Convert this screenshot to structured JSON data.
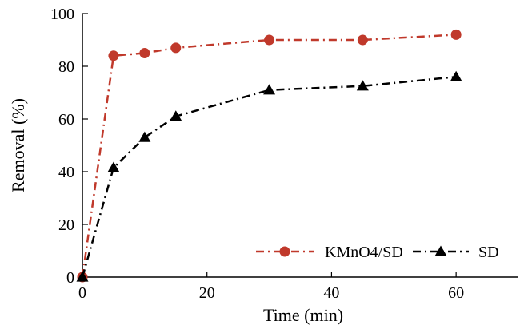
{
  "chart_data": {
    "type": "line",
    "xlabel": "Time (min)",
    "ylabel": "Removal (%)",
    "xlim": [
      0,
      70
    ],
    "ylim": [
      0,
      100
    ],
    "x_ticks": [
      0,
      20,
      40,
      60
    ],
    "y_ticks": [
      0,
      20,
      40,
      60,
      80,
      100
    ],
    "grid": false,
    "legend_position": "bottom-right",
    "series": [
      {
        "name": "KMnO4/SD",
        "color": "#c0392b",
        "marker": "circle",
        "line_style": "dash-dot",
        "x": [
          0,
          5,
          10,
          15,
          30,
          45,
          60
        ],
        "y": [
          0,
          84,
          85,
          87,
          90,
          90,
          92
        ]
      },
      {
        "name": "SD",
        "color": "#000000",
        "marker": "triangle",
        "line_style": "dash-dot",
        "x": [
          0,
          5,
          10,
          15,
          30,
          45,
          60
        ],
        "y": [
          0,
          41.5,
          53,
          61,
          71,
          72.5,
          76
        ]
      }
    ]
  }
}
